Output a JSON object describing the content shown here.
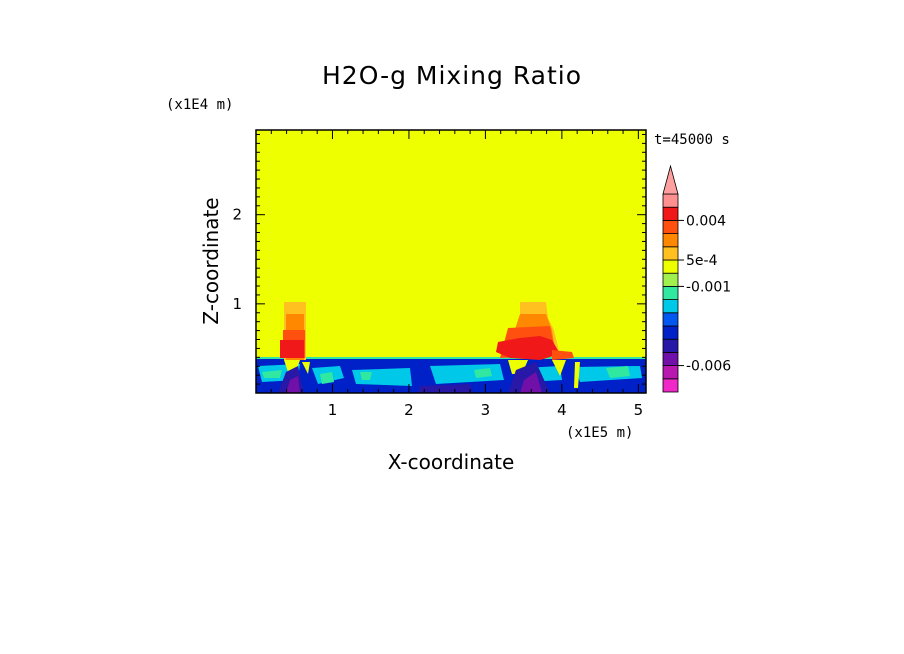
{
  "chart_data": {
    "type": "heatmap",
    "title": "H2O-g Mixing Ratio",
    "xlabel": "X-coordinate",
    "ylabel": "Z-coordinate",
    "x_unit": "(x1E5 m)",
    "y_unit": "(x1E4 m)",
    "time_label": "t=45000 s",
    "xlim": [
      0,
      5.1
    ],
    "ylim": [
      0,
      2.95
    ],
    "x_ticks": [
      {
        "value": 1,
        "label": "1"
      },
      {
        "value": 2,
        "label": "2"
      },
      {
        "value": 3,
        "label": "3"
      },
      {
        "value": 4,
        "label": "4"
      },
      {
        "value": 5,
        "label": "5"
      }
    ],
    "y_ticks": [
      {
        "value": 1,
        "label": "1"
      },
      {
        "value": 2,
        "label": "2"
      }
    ],
    "background_level_color": "#eeff00",
    "colorbar": {
      "levels_bottom_to_top": [
        {
          "color": "#f028c8"
        },
        {
          "color": "#b818b0"
        },
        {
          "color": "#7010a8"
        },
        {
          "color": "#2818a8"
        },
        {
          "color": "#0020c8"
        },
        {
          "color": "#0058f0"
        },
        {
          "color": "#00c8e8"
        },
        {
          "color": "#30e8a0"
        },
        {
          "color": "#a0f050"
        },
        {
          "color": "#eeff00"
        },
        {
          "color": "#ffc020"
        },
        {
          "color": "#ff8800"
        },
        {
          "color": "#ff5010"
        },
        {
          "color": "#f01818"
        },
        {
          "color": "#ff9090"
        }
      ],
      "labels": [
        {
          "text": "-0.006",
          "at_level_boundary": 2
        },
        {
          "text": "-0.001",
          "at_level_boundary": 8
        },
        {
          "text": "5e-4",
          "at_level_boundary": 10
        },
        {
          "text": "0.004",
          "at_level_boundary": 13
        }
      ],
      "overflow_arrow": true
    },
    "features": [
      {
        "name": "boundary-layer-band",
        "z_range": [
          0,
          0.4
        ],
        "dominant_colors": [
          "#0020c8",
          "#00c8e8",
          "#0058f0"
        ]
      },
      {
        "name": "plume-left",
        "x_center": 0.5,
        "z_top": 1.03,
        "peak_color": "#f01818"
      },
      {
        "name": "plume-right",
        "x_center": 3.6,
        "z_top": 1.03,
        "peak_color": "#f01818"
      }
    ]
  }
}
